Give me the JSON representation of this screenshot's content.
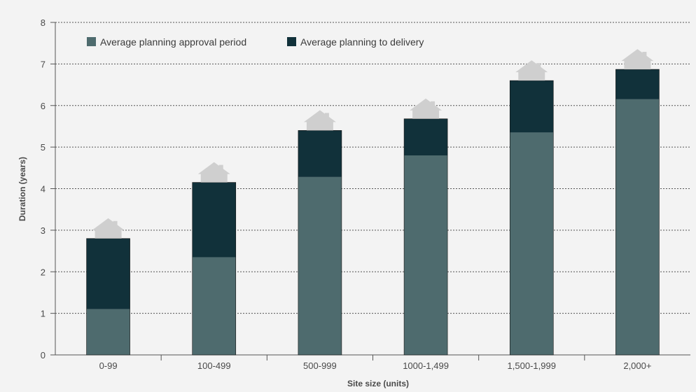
{
  "chart_data": {
    "type": "bar",
    "stacked": true,
    "categories": [
      "0-99",
      "100-499",
      "500-999",
      "1000-1,499",
      "1,500-1,999",
      "2,000+"
    ],
    "series": [
      {
        "name": "Average planning approval period",
        "values": [
          1.1,
          2.35,
          4.28,
          4.8,
          5.35,
          6.15
        ],
        "color": "#4e6b6e"
      },
      {
        "name": "Average planning to delivery",
        "values": [
          1.7,
          1.8,
          1.12,
          0.88,
          1.25,
          0.72
        ],
        "color": "#11313a"
      }
    ],
    "totals": [
      2.8,
      4.15,
      5.4,
      5.68,
      6.6,
      6.87
    ],
    "xlabel": "Site size (units)",
    "ylabel": "Duration (years)",
    "ylim": [
      0,
      8
    ],
    "yticks": [
      0,
      1,
      2,
      3,
      4,
      5,
      6,
      7,
      8
    ],
    "grid": "horizontal dotted",
    "legend_position": "top-left",
    "marker": "house-icon"
  },
  "colors": {
    "background": "#f3f3f3",
    "house": "#cfcfcf",
    "grid": "#555555"
  }
}
